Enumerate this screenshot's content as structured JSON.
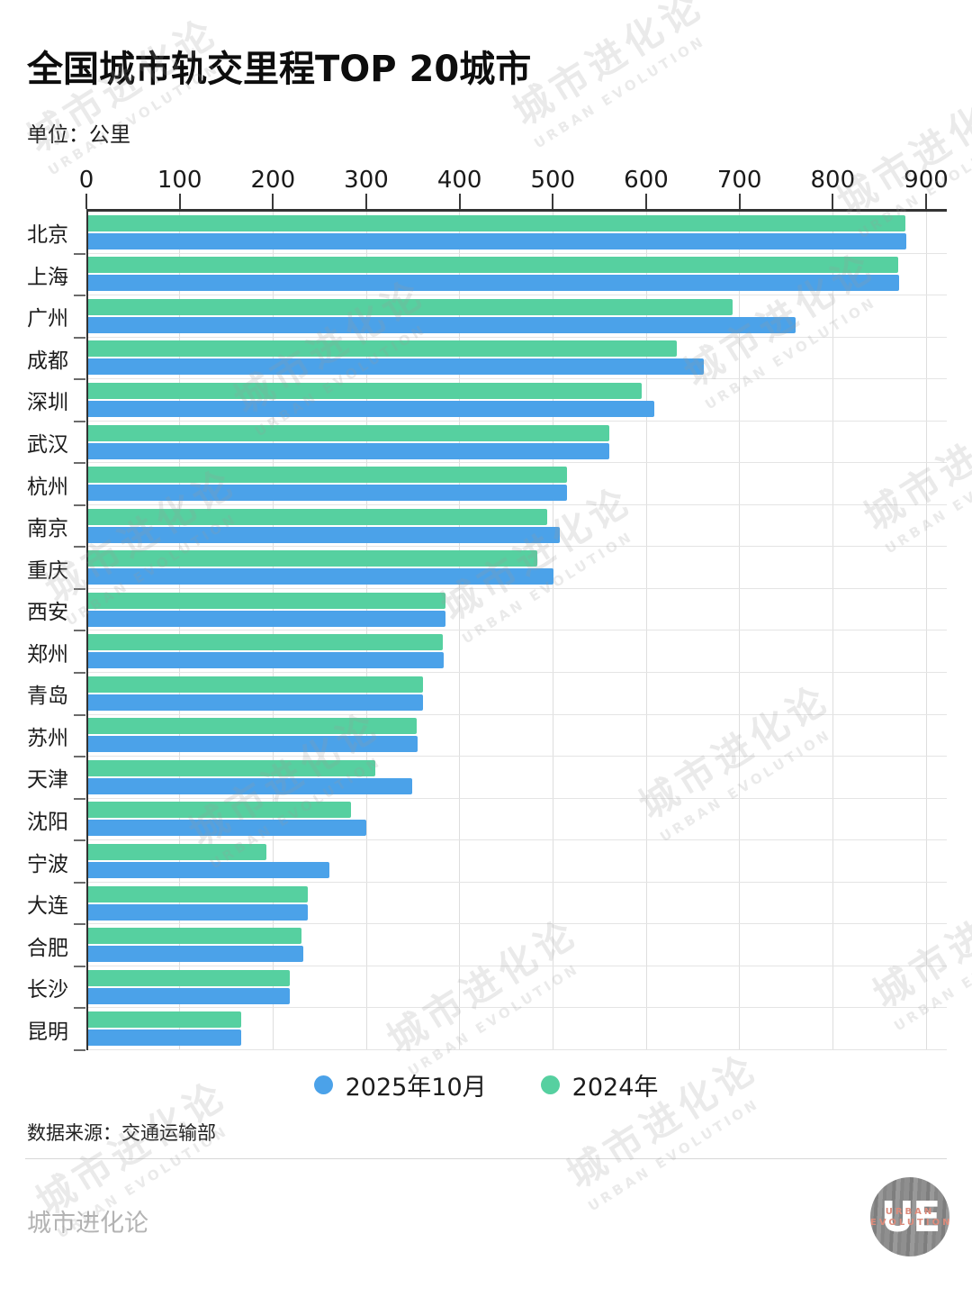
{
  "title": "全国城市轨交里程TOP 20城市",
  "unit_label": "单位：公里",
  "source_label": "数据来源：交通运输部",
  "footer_brand": "城市进化论",
  "watermark": {
    "cn": "城市进化论",
    "en": "URBAN EVOLUTION"
  },
  "logo": {
    "initials": "UE",
    "line1": "URBAN",
    "line2": "EVOLUTION"
  },
  "colors": {
    "blue_2025": "#4ba2e9",
    "green_2024": "#56d0a0",
    "axis": "#333333",
    "grid": "#dedede"
  },
  "legend": [
    {
      "label": "2025年10月",
      "color": "#4ba2e9"
    },
    {
      "label": "2024年",
      "color": "#56d0a0"
    }
  ],
  "chart_data": {
    "type": "bar",
    "orientation": "horizontal",
    "title": "全国城市轨交里程TOP 20城市",
    "unit": "公里",
    "xlim": [
      0,
      900
    ],
    "x_ticks": [
      0,
      100,
      200,
      300,
      400,
      500,
      600,
      700,
      800,
      900
    ],
    "grid": true,
    "legend_position": "bottom",
    "categories": [
      "北京",
      "上海",
      "广州",
      "成都",
      "深圳",
      "武汉",
      "杭州",
      "南京",
      "重庆",
      "西安",
      "郑州",
      "青岛",
      "苏州",
      "天津",
      "沈阳",
      "宁波",
      "大连",
      "合肥",
      "长沙",
      "昆明"
    ],
    "series": [
      {
        "name": "2024年",
        "color": "#56d0a0",
        "values": [
          878,
          870,
          693,
          633,
          595,
          560,
          515,
          494,
          483,
          385,
          382,
          361,
          354,
          310,
          284,
          193,
          237,
          231,
          218,
          166
        ]
      },
      {
        "name": "2025年10月",
        "color": "#4ba2e9",
        "values": [
          879,
          871,
          760,
          662,
          609,
          560,
          515,
          507,
          501,
          385,
          383,
          361,
          355,
          349,
          300,
          260,
          237,
          232,
          218,
          166
        ]
      }
    ]
  }
}
